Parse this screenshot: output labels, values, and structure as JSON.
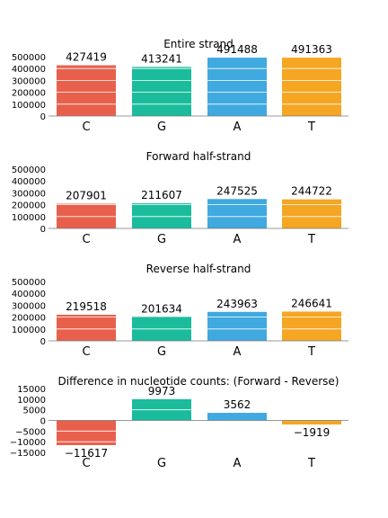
{
  "colors": {
    "C": "#e8604c",
    "G": "#1abc9c",
    "A": "#3fa9e0",
    "T": "#f5a623",
    "axis": "#777777",
    "bar_grid": "#ffffff"
  },
  "chart_data": [
    {
      "type": "bar",
      "title": "Entire strand",
      "categories": [
        "C",
        "G",
        "A",
        "T"
      ],
      "values": [
        427419,
        413241,
        491488,
        491363
      ],
      "yticks": [
        "500000",
        "400000",
        "300000",
        "200000",
        "100000",
        "0"
      ],
      "ytick_values": [
        500000,
        400000,
        300000,
        200000,
        100000,
        0
      ],
      "ylim": [
        0,
        500000
      ],
      "ylabel": "",
      "xlabel": "",
      "grid": true
    },
    {
      "type": "bar",
      "title": "Forward half-strand",
      "categories": [
        "C",
        "G",
        "A",
        "T"
      ],
      "values": [
        207901,
        211607,
        247525,
        244722
      ],
      "yticks": [
        "500000",
        "400000",
        "300000",
        "200000",
        "100000",
        "0"
      ],
      "ytick_values": [
        500000,
        400000,
        300000,
        200000,
        100000,
        0
      ],
      "ylim": [
        0,
        500000
      ],
      "ylabel": "",
      "xlabel": "",
      "grid": true
    },
    {
      "type": "bar",
      "title": "Reverse half-strand",
      "categories": [
        "C",
        "G",
        "A",
        "T"
      ],
      "values": [
        219518,
        201634,
        243963,
        246641
      ],
      "yticks": [
        "500000",
        "400000",
        "300000",
        "200000",
        "100000",
        "0"
      ],
      "ytick_values": [
        500000,
        400000,
        300000,
        200000,
        100000,
        0
      ],
      "ylim": [
        0,
        500000
      ],
      "ylabel": "",
      "xlabel": "",
      "grid": true
    },
    {
      "type": "bar",
      "title": "Difference in nucleotide counts: (Forward - Reverse)",
      "categories": [
        "C",
        "G",
        "A",
        "T"
      ],
      "values": [
        -11617,
        9973,
        3562,
        -1919
      ],
      "yticks": [
        "15000",
        "10000",
        "5000",
        "0",
        "−5000",
        "−10000",
        "−15000"
      ],
      "ytick_values": [
        15000,
        10000,
        5000,
        0,
        -5000,
        -10000,
        -15000
      ],
      "ylim": [
        -15000,
        15000
      ],
      "ylabel": "",
      "xlabel": "",
      "grid": true
    }
  ]
}
